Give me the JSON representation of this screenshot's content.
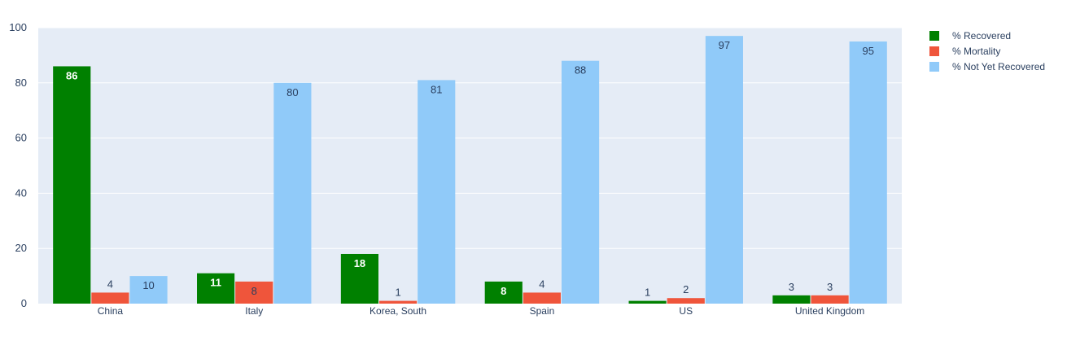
{
  "colors": {
    "plot_bg": "#e5ecf6",
    "grid": "#ffffff",
    "text": "#2a3f5f"
  },
  "legend": {
    "placement": "right"
  },
  "chart_data": {
    "type": "bar",
    "categories": [
      "China",
      "Italy",
      "Korea, South",
      "Spain",
      "US",
      "United Kingdom"
    ],
    "ylim": [
      0,
      100
    ],
    "yticks": [
      0,
      20,
      40,
      60,
      80,
      100
    ],
    "grid": true,
    "series": [
      {
        "name": "% Recovered",
        "color": "#008000",
        "values": [
          86,
          11,
          18,
          8,
          1,
          3
        ],
        "labels": [
          "86",
          "11",
          "18",
          "8",
          "1",
          "3"
        ]
      },
      {
        "name": "% Mortality",
        "color": "#ef553b",
        "values": [
          4,
          8,
          1,
          4,
          2,
          3
        ],
        "labels": [
          "4",
          "8",
          "1",
          "4",
          "2",
          "3"
        ]
      },
      {
        "name": "% Not Yet Recovered",
        "color": "#90caf9",
        "values": [
          10,
          80,
          81,
          88,
          97,
          95
        ],
        "labels": [
          "10",
          "80",
          "81",
          "88",
          "97",
          "95"
        ]
      }
    ]
  }
}
